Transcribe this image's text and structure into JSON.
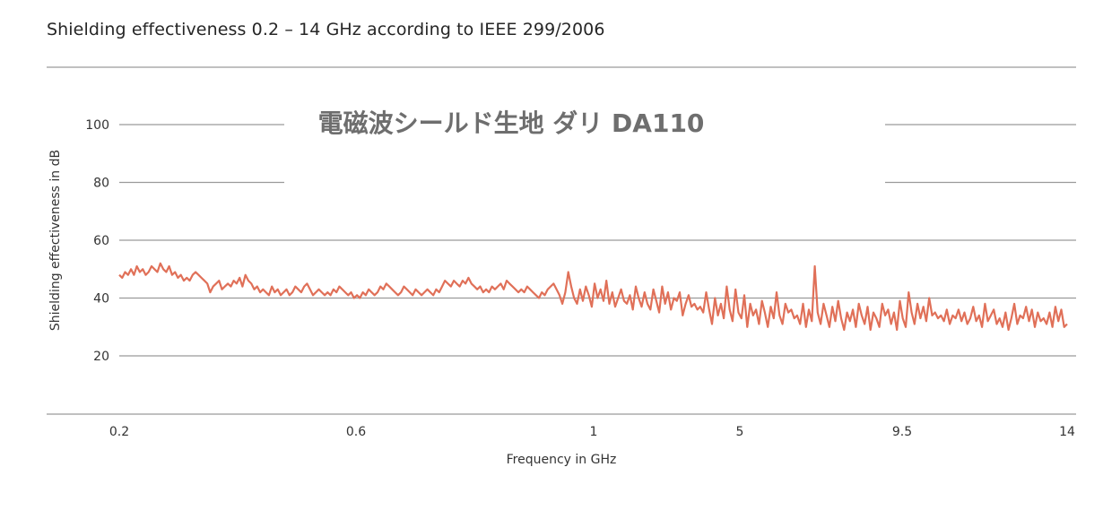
{
  "chart_data": {
    "type": "line",
    "title": "Shielding effectiveness 0.2 – 14 GHz according to IEEE 299/2006",
    "overlay_title": "電磁波シールド生地 ダリ DA110",
    "xlabel": "Frequency in GHz",
    "ylabel": "Shielding effectiveness in dB",
    "x_ticks": [
      "0.2",
      "0.6",
      "1",
      "5",
      "9.5",
      "14"
    ],
    "y_ticks": [
      100,
      80,
      60,
      40,
      20
    ],
    "ylim": [
      0,
      110
    ],
    "grid": true,
    "series": [
      {
        "color": "#e07058",
        "values": [
          48,
          47,
          49,
          48,
          50,
          48,
          51,
          49,
          50,
          48,
          49,
          51,
          50,
          49,
          52,
          50,
          49,
          51,
          48,
          49,
          47,
          48,
          46,
          47,
          46,
          48,
          49,
          48,
          47,
          46,
          45,
          42,
          44,
          45,
          46,
          43,
          44,
          45,
          44,
          46,
          45,
          47,
          44,
          48,
          46,
          45,
          43,
          44,
          42,
          43,
          42,
          41,
          44,
          42,
          43,
          41,
          42,
          43,
          41,
          42,
          44,
          43,
          42,
          44,
          45,
          43,
          41,
          42,
          43,
          42,
          41,
          42,
          41,
          43,
          42,
          44,
          43,
          42,
          41,
          42,
          40,
          41,
          40,
          42,
          41,
          43,
          42,
          41,
          42,
          44,
          43,
          45,
          44,
          43,
          42,
          41,
          42,
          44,
          43,
          42,
          41,
          43,
          42,
          41,
          42,
          43,
          42,
          41,
          43,
          42,
          44,
          46,
          45,
          44,
          46,
          45,
          44,
          46,
          45,
          47,
          45,
          44,
          43,
          44,
          42,
          43,
          42,
          44,
          43,
          44,
          45,
          43,
          46,
          45,
          44,
          43,
          42,
          43,
          42,
          44,
          43,
          42,
          41,
          40,
          42,
          41,
          43,
          44,
          45,
          43,
          41,
          38,
          42,
          49,
          44,
          40,
          38,
          43,
          39,
          44,
          41,
          37,
          45,
          40,
          43,
          39,
          46,
          38,
          42,
          37,
          40,
          43,
          39,
          38,
          41,
          36,
          44,
          40,
          37,
          42,
          38,
          36,
          43,
          39,
          35,
          44,
          38,
          42,
          36,
          40,
          39,
          42,
          34,
          38,
          41,
          37,
          38,
          36,
          37,
          35,
          42,
          36,
          31,
          40,
          34,
          38,
          33,
          44,
          36,
          32,
          43,
          35,
          33,
          41,
          30,
          38,
          34,
          36,
          31,
          39,
          35,
          30,
          37,
          33,
          42,
          34,
          31,
          38,
          35,
          36,
          33,
          34,
          31,
          38,
          30,
          36,
          32,
          51,
          35,
          31,
          38,
          34,
          30,
          37,
          32,
          39,
          33,
          29,
          35,
          32,
          36,
          30,
          38,
          34,
          31,
          37,
          29,
          35,
          33,
          30,
          38,
          34,
          36,
          31,
          35,
          29,
          39,
          33,
          30,
          42,
          35,
          31,
          38,
          33,
          37,
          32,
          40,
          34,
          35,
          33,
          34,
          32,
          36,
          31,
          34,
          33,
          36,
          32,
          35,
          31,
          33,
          37,
          32,
          34,
          30,
          38,
          32,
          34,
          36,
          31,
          33,
          30,
          35,
          29,
          33,
          38,
          31,
          34,
          33,
          37,
          32,
          36,
          30,
          35,
          32,
          33,
          31,
          35,
          30,
          37,
          32,
          36,
          30,
          31
        ]
      }
    ]
  }
}
